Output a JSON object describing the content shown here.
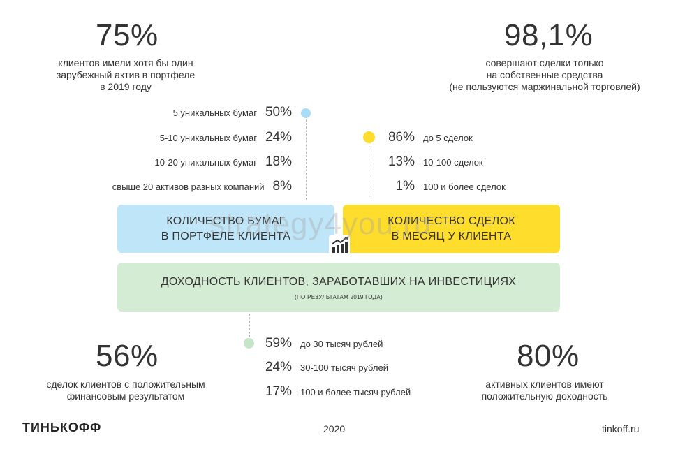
{
  "top_left": {
    "value": "75%",
    "caption": [
      "клиентов имели хотя бы один",
      "зарубежный актив в портфеле",
      "в 2019 году"
    ]
  },
  "top_right": {
    "value": "98,1%",
    "caption": [
      "совершают сделки только",
      "на собственные средства",
      "(не пользуются маржинальной торговлей)"
    ]
  },
  "papers": [
    {
      "label": "5 уникальных бумаг",
      "pct": "50%"
    },
    {
      "label": "5-10 уникальных бумаг",
      "pct": "24%"
    },
    {
      "label": "10-20 уникальных бумаг",
      "pct": "18%"
    },
    {
      "label": "свыше 20 активов разных компаний",
      "pct": "8%"
    }
  ],
  "deals": [
    {
      "pct": "86%",
      "label": "до 5 сделок"
    },
    {
      "pct": "13%",
      "label": "10-100 сделок"
    },
    {
      "pct": "1%",
      "label": "100 и более сделок"
    }
  ],
  "box_blue": {
    "line1": "КОЛИЧЕСТВО БУМАГ",
    "line2": "В ПОРТФЕЛЕ КЛИЕНТА"
  },
  "box_yellow": {
    "line1": "КОЛИЧЕСТВО СДЕЛОК",
    "line2": "В МЕСЯЦ У КЛИЕНТА"
  },
  "box_green": {
    "title": "ДОХОДНОСТЬ КЛИЕНТОВ, ЗАРАБОТАВШИХ НА ИНВЕСТИЦИЯХ",
    "subtitle": "(ПО РЕЗУЛЬТАТАМ 2019 ГОДА)"
  },
  "income": [
    {
      "pct": "59%",
      "label": "до 30 тысяч рублей"
    },
    {
      "pct": "24%",
      "label": "30-100 тысяч рублей"
    },
    {
      "pct": "17%",
      "label": "100 и более тысяч рублей"
    }
  ],
  "bottom_left": {
    "value": "56%",
    "caption": [
      "сделок клиентов  с положительным",
      "финансовым результатом"
    ]
  },
  "bottom_right": {
    "value": "80%",
    "caption": [
      "активных клиентов имеют",
      "положительную доходность"
    ]
  },
  "footer": {
    "brand": "ТИНЬКОФФ",
    "year": "2020",
    "site": "tinkoff.ru"
  },
  "watermark": "strategy4you.ru",
  "colors": {
    "blue": "#bfe5f8",
    "yellow": "#ffdd2d",
    "green": "#d4ecd4",
    "blue_dot": "#aadcf5",
    "green_dot": "#c5e5c8"
  }
}
